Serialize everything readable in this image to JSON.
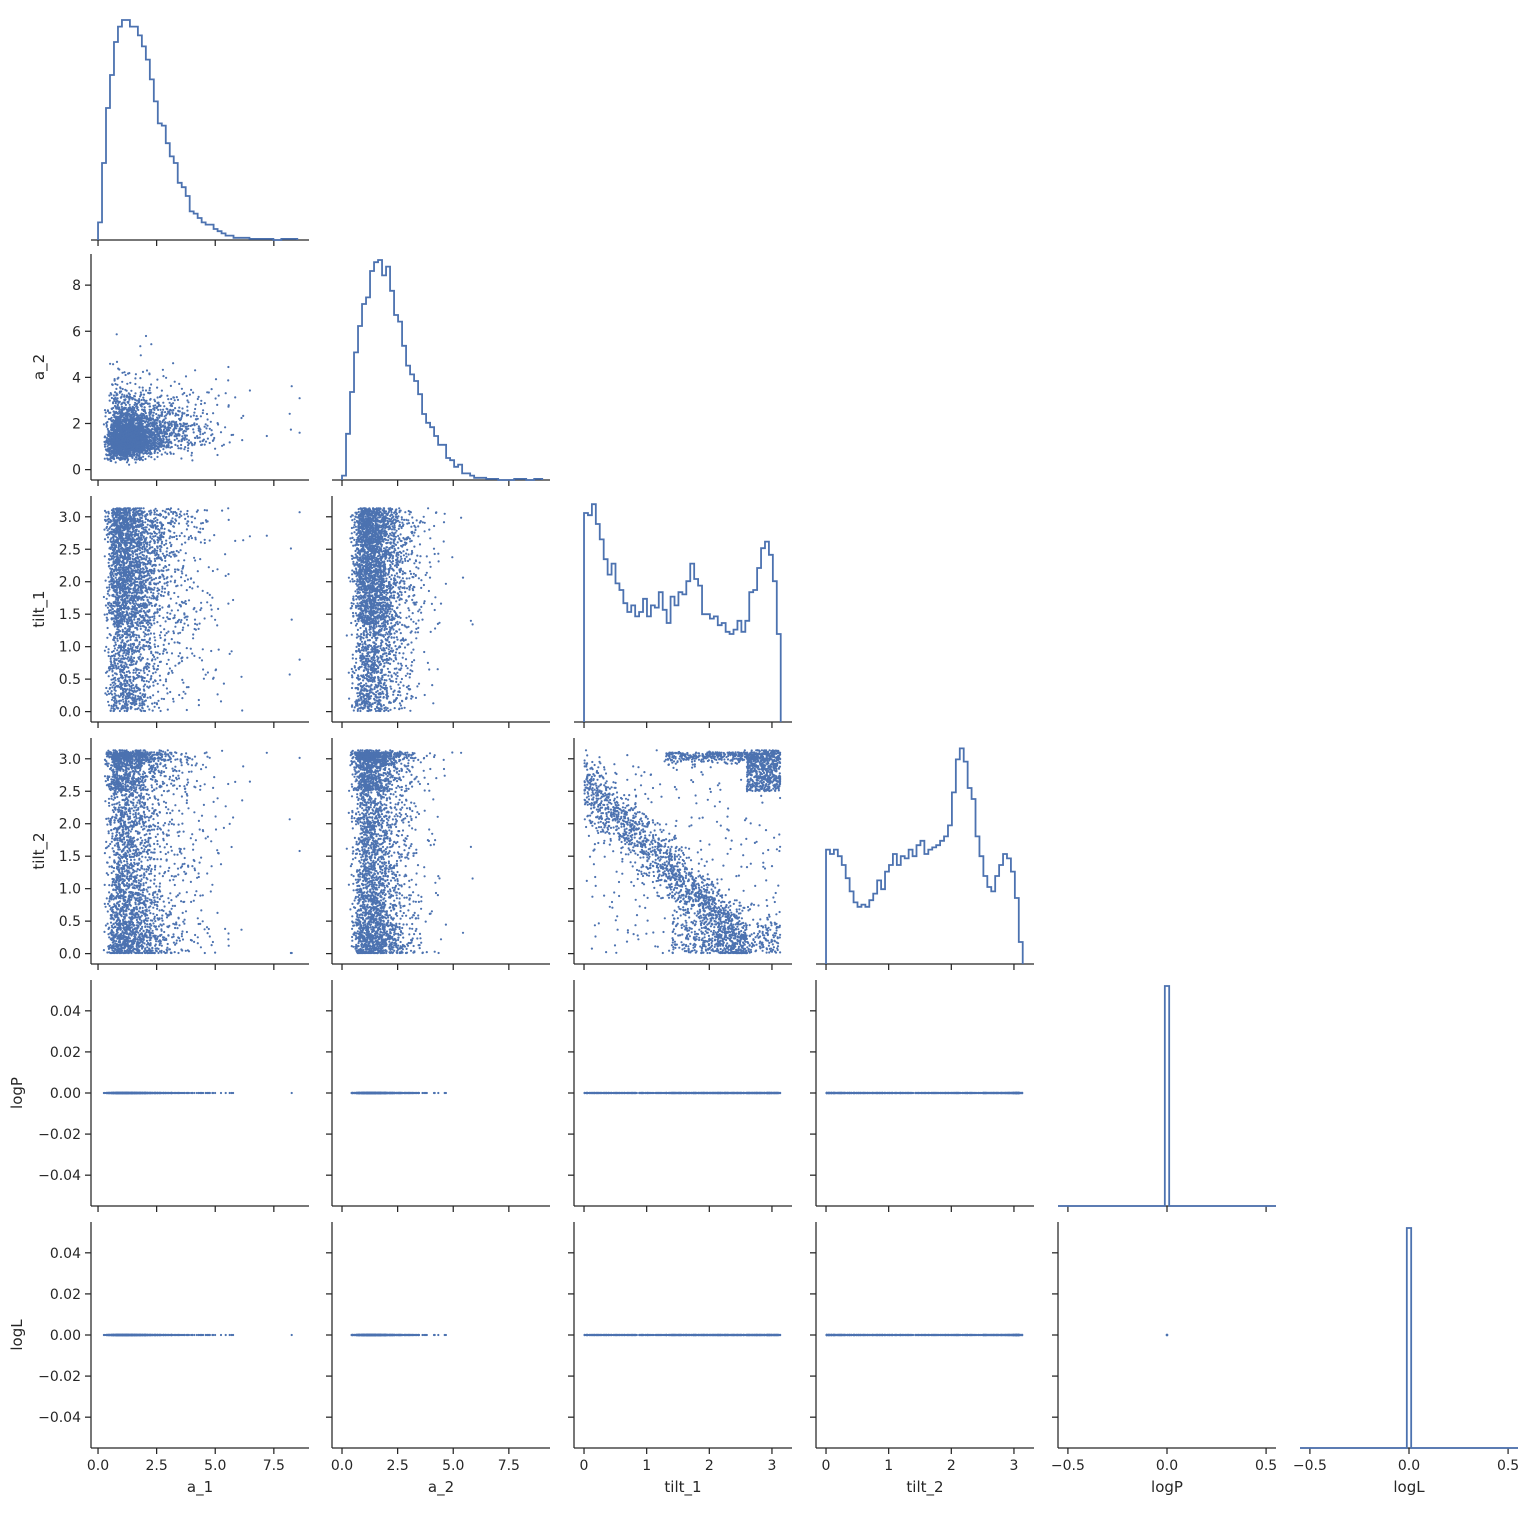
{
  "chart_data": {
    "type": "scatter",
    "subtype": "corner-pairplot",
    "title": "",
    "color": "#4c72b0",
    "variables": [
      "a_1",
      "a_2",
      "tilt_1",
      "tilt_2",
      "logP",
      "logL"
    ],
    "axes": {
      "a_1": {
        "range": [
          -0.3,
          9.0
        ],
        "ticks": [
          0,
          2.5,
          5,
          7.5
        ],
        "tick_labels": [
          "0.0",
          "2.5",
          "5.0",
          "7.5"
        ]
      },
      "a_2": {
        "range": [
          -0.45,
          9.35
        ],
        "ticks": [
          0,
          2,
          4,
          6,
          8
        ],
        "tick_labels": [
          "0",
          "2",
          "4",
          "6",
          "8"
        ],
        "x_ticks": [
          0,
          2.5,
          5,
          7.5
        ],
        "x_tick_labels": [
          "0.0",
          "2.5",
          "5.0",
          "7.5"
        ]
      },
      "tilt_1": {
        "range": [
          -0.16,
          3.32
        ],
        "ticks": [
          0,
          0.5,
          1,
          1.5,
          2,
          2.5,
          3
        ],
        "tick_labels": [
          "0.0",
          "0.5",
          "1.0",
          "1.5",
          "2.0",
          "2.5",
          "3.0"
        ],
        "x_ticks": [
          0,
          1,
          2,
          3
        ],
        "x_tick_labels": [
          "0",
          "1",
          "2",
          "3"
        ]
      },
      "tilt_2": {
        "range": [
          -0.16,
          3.32
        ],
        "ticks": [
          0,
          0.5,
          1,
          1.5,
          2,
          2.5,
          3
        ],
        "tick_labels": [
          "0.0",
          "0.5",
          "1.0",
          "1.5",
          "2.0",
          "2.5",
          "3.0"
        ],
        "x_ticks": [
          0,
          1,
          2,
          3
        ],
        "x_tick_labels": [
          "0",
          "1",
          "2",
          "3"
        ]
      },
      "logP": {
        "range": [
          -0.055,
          0.055
        ],
        "ticks": [
          -0.04,
          -0.02,
          0,
          0.02,
          0.04
        ],
        "tick_labels": [
          "−0.04",
          "−0.02",
          "0.00",
          "0.02",
          "0.04"
        ],
        "x_range": [
          -0.55,
          0.55
        ],
        "x_ticks": [
          -0.5,
          0,
          0.5
        ],
        "x_tick_labels": [
          "−0.5",
          "0.0",
          "0.5"
        ]
      },
      "logL": {
        "range": [
          -0.055,
          0.055
        ],
        "ticks": [
          -0.04,
          -0.02,
          0,
          0.02,
          0.04
        ],
        "tick_labels": [
          "−0.04",
          "−0.02",
          "0.00",
          "0.02",
          "0.04"
        ],
        "x_range": [
          -0.55,
          0.55
        ],
        "x_ticks": [
          -0.5,
          0,
          0.5
        ],
        "x_tick_labels": [
          "−0.5",
          "0.0",
          "0.5"
        ]
      }
    },
    "histograms": {
      "a_1": {
        "bin_start": 0.0,
        "bin_width": 0.17,
        "counts": [
          0.08,
          0.35,
          0.6,
          0.75,
          0.9,
          0.97,
          1.0,
          1.0,
          0.97,
          0.97,
          0.93,
          0.88,
          0.82,
          0.73,
          0.63,
          0.53,
          0.52,
          0.44,
          0.38,
          0.35,
          0.26,
          0.24,
          0.2,
          0.13,
          0.12,
          0.1,
          0.08,
          0.07,
          0.07,
          0.05,
          0.04,
          0.03,
          0.02,
          0.02,
          0.01,
          0.01,
          0.01,
          0.01,
          0.005,
          0.005,
          0.005,
          0.005,
          0.005,
          0.005,
          0,
          0,
          0.005,
          0.005,
          0.005,
          0.005
        ]
      },
      "a_2": {
        "bin_start": 0.0,
        "bin_width": 0.18,
        "counts": [
          0.02,
          0.21,
          0.4,
          0.58,
          0.7,
          0.8,
          0.83,
          0.95,
          0.99,
          1.0,
          0.93,
          0.97,
          0.86,
          0.75,
          0.72,
          0.61,
          0.52,
          0.48,
          0.45,
          0.39,
          0.3,
          0.26,
          0.24,
          0.2,
          0.16,
          0.16,
          0.1,
          0.09,
          0.06,
          0.07,
          0.03,
          0.03,
          0.02,
          0.01,
          0.01,
          0.01,
          0.005,
          0.005,
          0.005,
          0,
          0,
          0,
          0,
          0.005,
          0.005,
          0.005,
          0,
          0,
          0.005,
          0.005
        ]
      },
      "tilt_1": {
        "bin_start": 0.0,
        "bin_width": 0.0628,
        "counts": [
          0.95,
          0.94,
          0.99,
          0.9,
          0.83,
          0.74,
          0.67,
          0.72,
          0.63,
          0.6,
          0.54,
          0.5,
          0.53,
          0.48,
          0.5,
          0.56,
          0.48,
          0.53,
          0.52,
          0.59,
          0.51,
          0.45,
          0.57,
          0.53,
          0.59,
          0.58,
          0.64,
          0.72,
          0.65,
          0.62,
          0.49,
          0.49,
          0.47,
          0.48,
          0.44,
          0.45,
          0.41,
          0.4,
          0.42,
          0.46,
          0.41,
          0.46,
          0.59,
          0.6,
          0.7,
          0.79,
          0.82,
          0.76,
          0.64,
          0.4
        ]
      },
      "tilt_2": {
        "bin_start": 0.0,
        "bin_width": 0.0628,
        "counts": [
          0.52,
          0.5,
          0.52,
          0.49,
          0.45,
          0.39,
          0.33,
          0.28,
          0.26,
          0.27,
          0.26,
          0.29,
          0.32,
          0.38,
          0.34,
          0.42,
          0.45,
          0.5,
          0.45,
          0.49,
          0.48,
          0.52,
          0.49,
          0.54,
          0.56,
          0.5,
          0.52,
          0.53,
          0.54,
          0.56,
          0.58,
          0.63,
          0.78,
          0.93,
          0.98,
          0.92,
          0.8,
          0.75,
          0.58,
          0.49,
          0.4,
          0.35,
          0.33,
          0.4,
          0.45,
          0.5,
          0.48,
          0.42,
          0.3,
          0.1
        ]
      },
      "logP": {
        "spike_at": 0.0,
        "spike_width": 0.022,
        "height": 1.0
      },
      "logL": {
        "spike_at": 0.0,
        "spike_width": 0.022,
        "height": 1.0
      }
    },
    "grid": false,
    "legend": "none"
  }
}
